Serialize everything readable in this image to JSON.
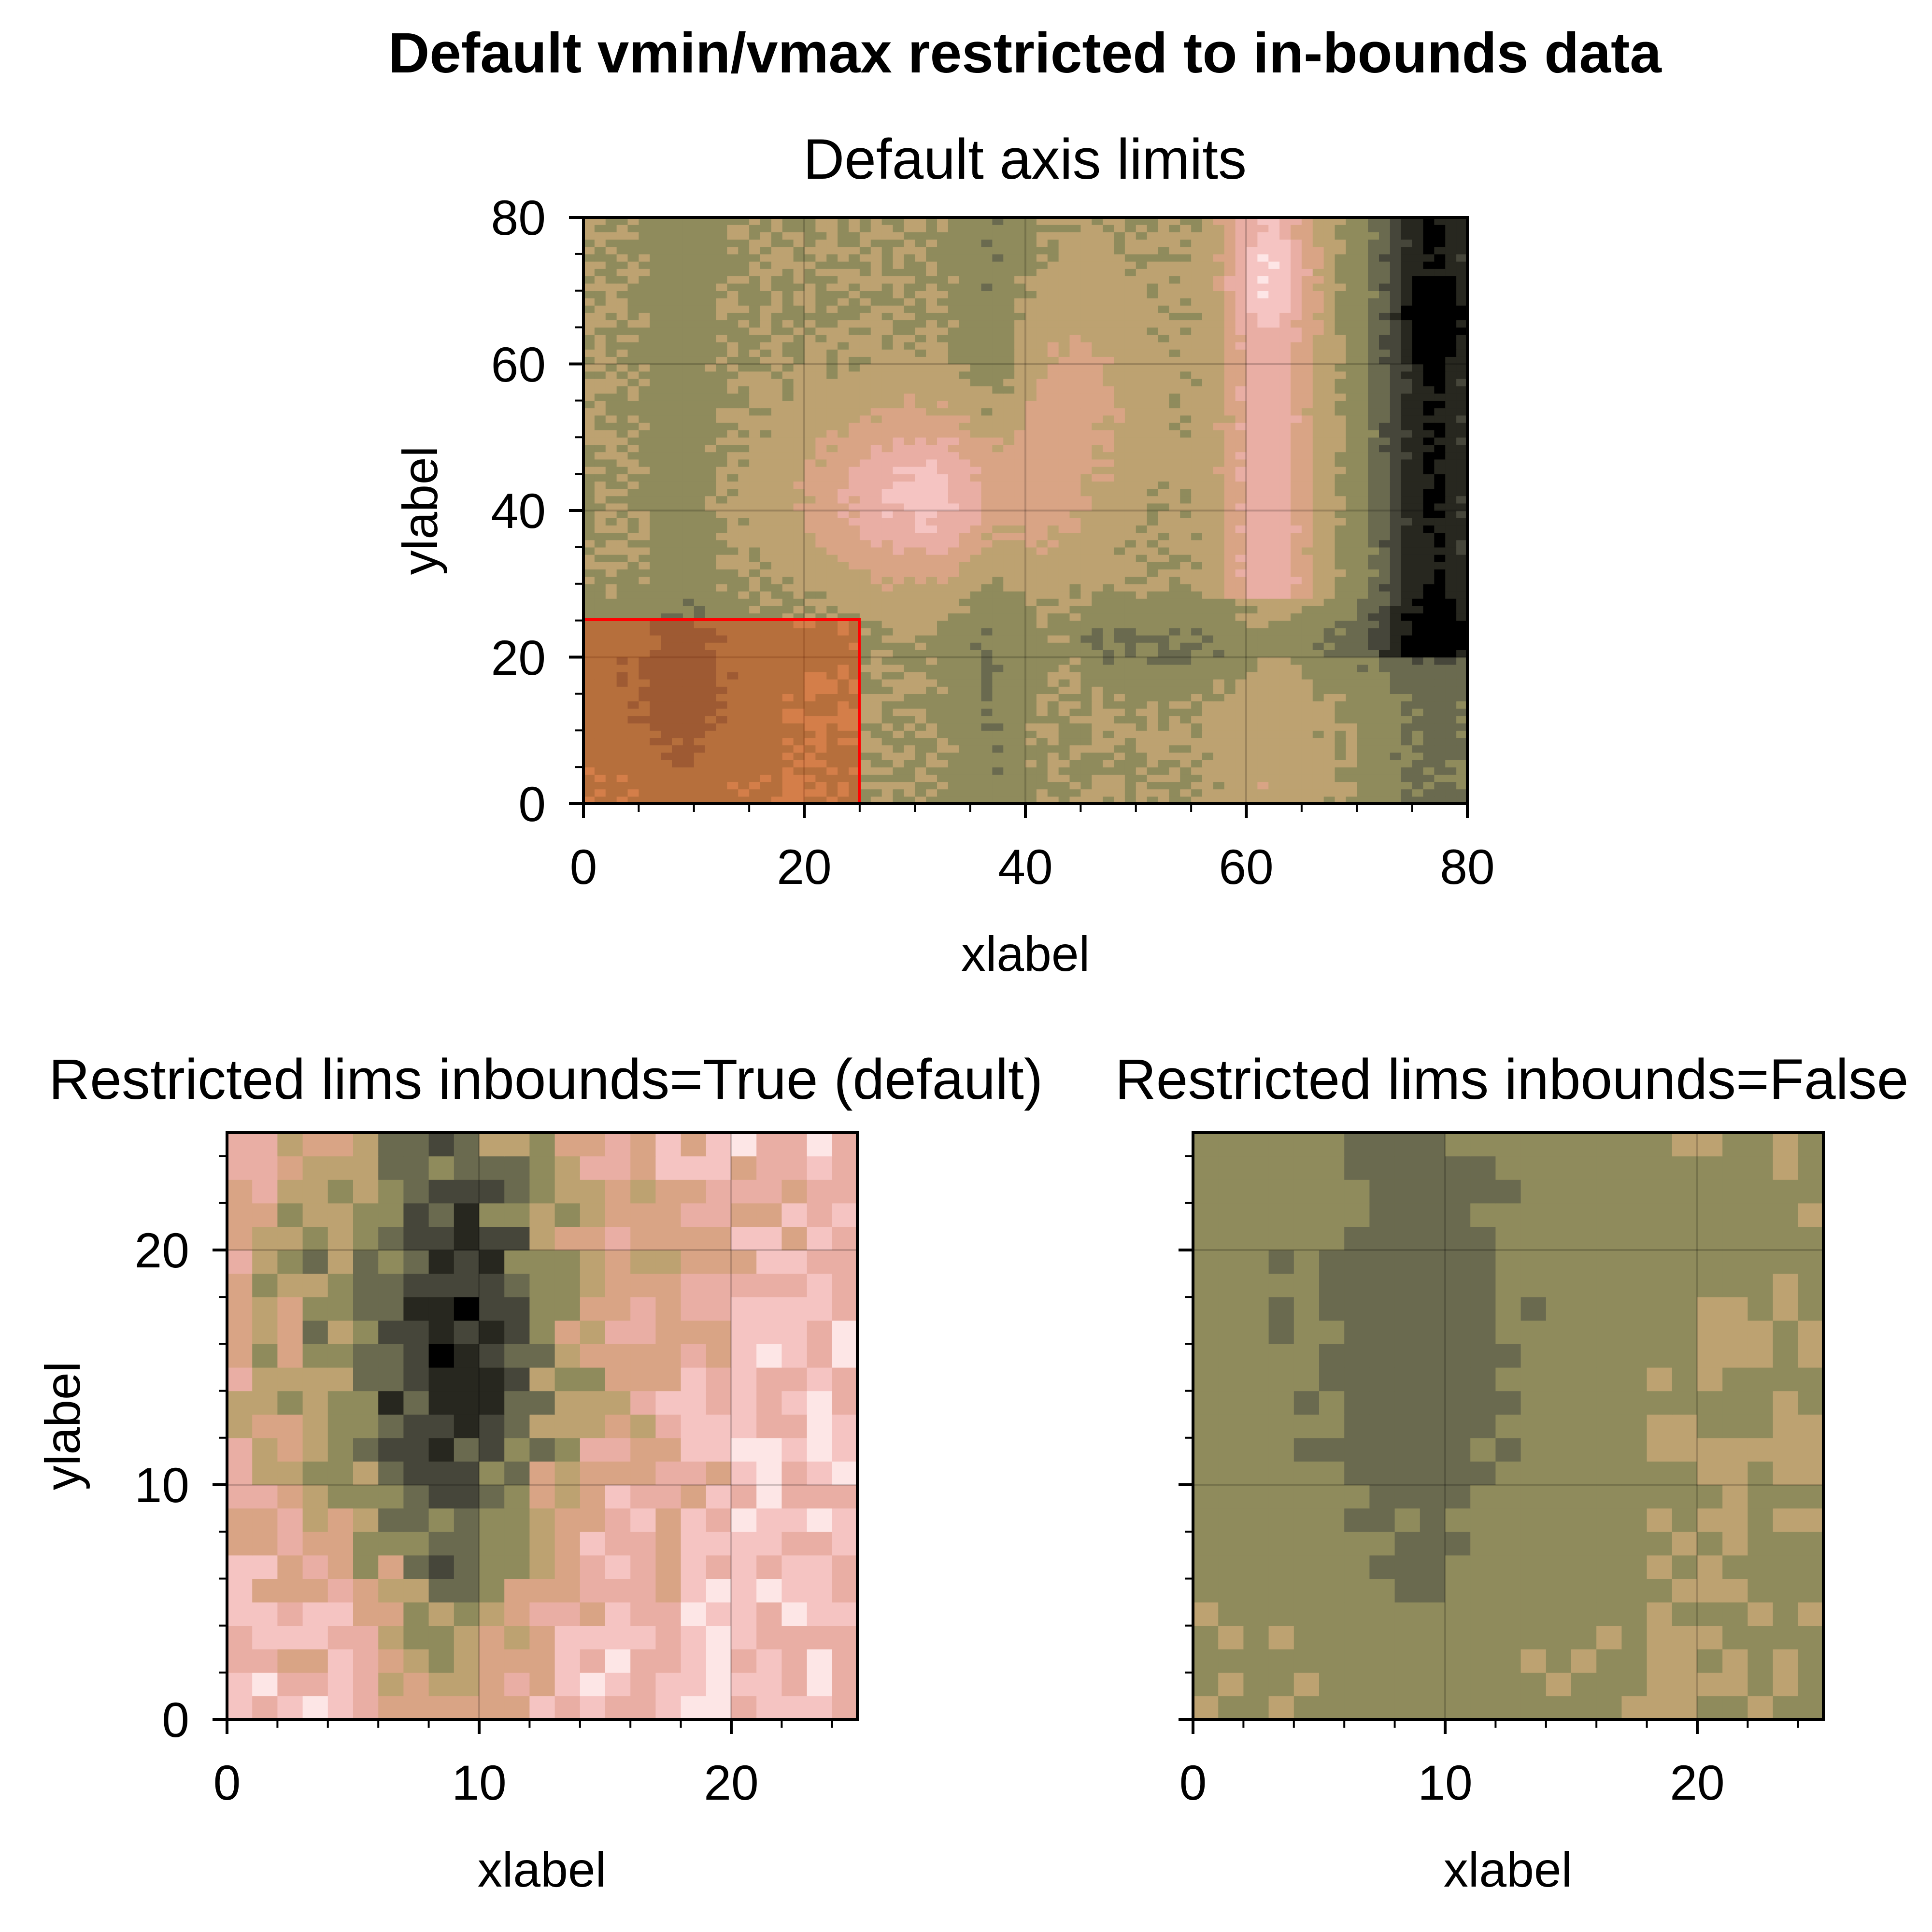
{
  "figure": {
    "suptitle": "Default vmin/vmax restricted to in-bounds data"
  },
  "chart_data": [
    {
      "type": "heatmap",
      "title": "Default axis limits",
      "xlabel": "xlabel",
      "ylabel": "ylabel",
      "xlim": [
        0,
        80
      ],
      "ylim": [
        0,
        80
      ],
      "xticks": [
        "0",
        "20",
        "40",
        "60",
        "80"
      ],
      "yticks": [
        "0",
        "20",
        "40",
        "60",
        "80"
      ],
      "grid": true,
      "highlight_rectangle": {
        "x": [
          0,
          25
        ],
        "y": [
          0,
          25
        ],
        "color": "#ff0000"
      },
      "values_description_rows": [
        [
          5,
          5,
          5,
          5,
          5,
          4,
          4,
          4,
          4,
          5,
          5,
          5,
          6,
          6,
          6,
          6,
          6,
          7,
          7,
          7,
          7,
          7,
          6,
          6,
          6,
          4,
          4,
          4,
          4,
          5,
          5,
          6,
          6,
          6,
          6,
          6,
          6,
          6,
          5,
          5,
          5,
          5,
          5,
          4,
          4,
          4,
          3,
          3,
          3,
          2,
          2,
          2,
          1,
          1,
          1,
          1
        ],
        [
          5,
          5,
          5,
          4,
          4,
          4,
          4,
          5,
          5,
          5,
          6,
          6,
          6,
          7,
          7,
          7,
          7,
          8,
          8,
          8,
          8,
          7,
          7,
          6,
          6,
          4,
          4,
          4,
          5,
          5,
          6,
          6,
          6,
          6,
          6,
          6,
          6,
          5,
          5,
          5,
          5,
          4,
          4,
          4,
          4,
          3,
          3,
          3,
          2,
          2,
          2,
          1,
          1,
          1,
          1,
          1
        ],
        [
          5,
          5,
          5,
          5,
          5,
          5,
          5,
          5,
          5,
          6,
          6,
          7,
          7,
          8,
          8,
          9,
          9,
          9,
          9,
          8,
          8,
          8,
          7,
          6,
          6,
          5,
          5,
          5,
          5,
          5,
          6,
          6,
          6,
          6,
          6,
          6,
          6,
          6,
          5,
          5,
          5,
          4,
          4,
          4,
          3,
          3,
          3,
          2,
          2,
          2,
          1,
          1,
          1,
          1,
          2,
          2
        ],
        [
          4,
          4,
          4,
          4,
          5,
          5,
          5,
          5,
          5,
          6,
          6,
          7,
          7,
          8,
          8,
          9,
          9,
          9,
          9,
          8,
          8,
          8,
          7,
          6,
          6,
          5,
          5,
          4,
          4,
          4,
          4,
          4,
          4,
          4,
          4,
          4,
          4,
          4,
          3,
          3,
          3,
          3,
          3,
          3,
          3,
          3,
          3,
          2,
          2,
          2,
          1,
          1,
          2,
          2,
          2,
          3
        ],
        [
          3,
          3,
          3,
          3,
          3,
          3,
          4,
          4,
          4,
          4,
          4,
          4,
          4,
          4,
          4,
          4,
          4,
          4,
          4,
          4,
          4,
          4,
          4,
          4,
          4,
          3,
          3,
          3,
          3,
          3,
          3,
          3,
          3,
          3,
          3,
          3,
          3,
          3,
          3,
          3,
          3,
          3,
          3,
          3,
          3,
          3,
          3,
          3,
          2,
          2,
          2,
          2,
          2,
          2,
          3,
          3
        ],
        [
          3,
          3,
          3,
          3,
          3,
          3,
          3,
          3,
          3,
          3,
          4,
          4,
          4,
          4,
          4,
          4,
          4,
          4,
          4,
          4,
          4,
          4,
          4,
          4,
          4,
          4,
          4,
          4,
          4,
          4,
          4,
          4,
          4,
          4,
          4,
          4,
          4,
          4,
          4,
          4,
          4,
          4,
          4,
          4,
          4,
          4,
          4,
          4,
          4,
          4,
          4,
          4,
          4,
          4,
          4,
          4
        ]
      ]
    },
    {
      "type": "heatmap",
      "title": "Restricted lims inbounds=True (default)",
      "xlabel": "xlabel",
      "ylabel": "ylabel",
      "xlim": [
        0,
        25
      ],
      "ylim": [
        0,
        25
      ],
      "xticks": [
        "0",
        "10",
        "20"
      ],
      "yticks": [
        "0",
        "10",
        "20"
      ],
      "grid": true
    },
    {
      "type": "heatmap",
      "title": "Restricted lims inbounds=False",
      "xlabel": "xlabel",
      "ylabel": "",
      "xlim": [
        0,
        25
      ],
      "ylim": [
        0,
        25
      ],
      "xticks": [
        "0",
        "10",
        "20"
      ],
      "yticks": [
        "",
        "",
        ""
      ],
      "grid": true
    }
  ],
  "colormap": [
    "#000000",
    "#27271f",
    "#46463a",
    "#6a6a4f",
    "#8f8b5c",
    "#bda271",
    "#d9a485",
    "#e9aea4",
    "#f5c4c2",
    "#fde6e6"
  ]
}
